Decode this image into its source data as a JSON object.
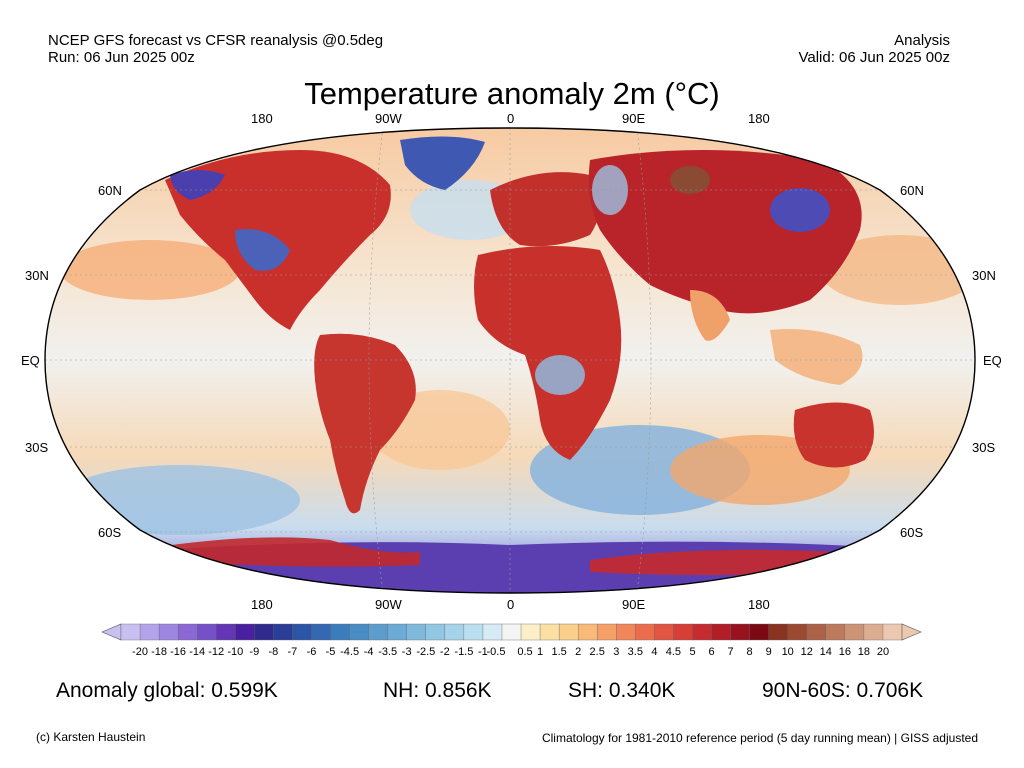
{
  "header": {
    "source": "NCEP GFS forecast vs CFSR reanalysis @0.5deg",
    "run": "Run: 06 Jun 2025 00z",
    "kind": "Analysis",
    "valid": "Valid: 06 Jun 2025 00z"
  },
  "title": "Temperature anomaly 2m (°C)",
  "map": {
    "projection": "Robinson",
    "lon_labels_top": [
      "180",
      "90W",
      "0",
      "90E",
      "180"
    ],
    "lon_labels_bottom": [
      "180",
      "90W",
      "0",
      "90E",
      "180"
    ],
    "lat_labels_left": [
      "60N",
      "30N",
      "EQ",
      "30S",
      "60S"
    ],
    "lat_labels_right": [
      "60N",
      "30N",
      "EQ",
      "30S",
      "60S"
    ]
  },
  "colorbar": {
    "ticks": [
      "-20",
      "-18",
      "-16",
      "-14",
      "-12",
      "-10",
      "-9",
      "-8",
      "-7",
      "-6",
      "-5",
      "-4.5",
      "-4",
      "-3.5",
      "-3",
      "-2.5",
      "-2",
      "-1.5",
      "-1",
      "-0.5",
      "0.5",
      "1",
      "1.5",
      "2",
      "2.5",
      "3",
      "3.5",
      "4",
      "4.5",
      "5",
      "6",
      "7",
      "8",
      "9",
      "10",
      "12",
      "14",
      "16",
      "18",
      "20"
    ],
    "colors": [
      "#c9c0f2",
      "#b2a3ea",
      "#9d86e0",
      "#8a69d4",
      "#7650c6",
      "#6236b4",
      "#4a20a0",
      "#2f2a8c",
      "#2a3d97",
      "#2d55a5",
      "#3469b2",
      "#3d7cbc",
      "#4a8dc5",
      "#5c9dcd",
      "#6dabd5",
      "#7fb9dc",
      "#92c6e3",
      "#a6d2ea",
      "#bcdff0",
      "#d6ebf5",
      "#f4f4f4",
      "#faefc8",
      "#fbe0a6",
      "#fbcf8c",
      "#f9b978",
      "#f5a066",
      "#f0875a",
      "#ea6e4d",
      "#e15642",
      "#d63f38",
      "#c52c2f",
      "#b01e28",
      "#971320",
      "#7c0a14",
      "#8a3320",
      "#9a4a33",
      "#ab6248",
      "#bc7b5e",
      "#cc9476",
      "#dcad90",
      "#ecc8b0"
    ]
  },
  "stats": {
    "global": "Anomaly global: 0.599K",
    "nh": "NH: 0.856K",
    "sh": "SH: 0.340K",
    "arctic_band": "90N-60S: 0.706K"
  },
  "footer": {
    "credit": "(c) Karsten Haustein",
    "climatology": "Climatology for 1981-2010 reference period (5 day running mean) | GISS adjusted"
  }
}
